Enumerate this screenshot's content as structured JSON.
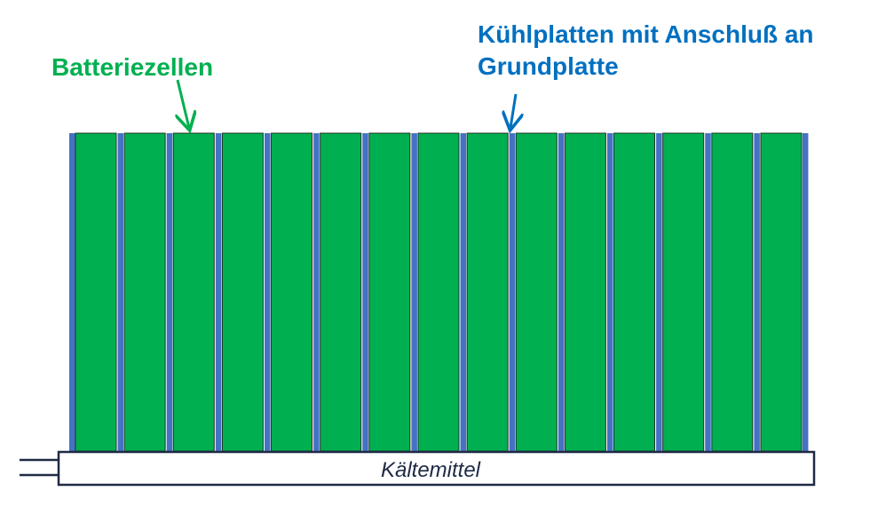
{
  "labels": {
    "cells": "Batteriezellen",
    "plates": [
      "Kühlplatten mit Anschluß an",
      "Grundplatte"
    ],
    "coolant": "Kältemittel"
  }
}
